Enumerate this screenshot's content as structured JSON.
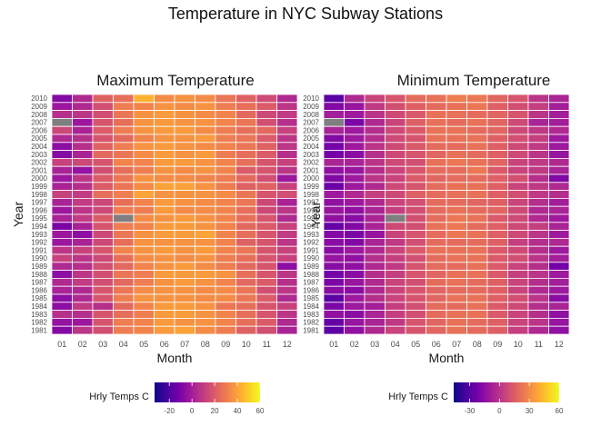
{
  "figure": {
    "title": "Temperature in NYC Subway Stations"
  },
  "chart_data": [
    {
      "type": "heatmap",
      "title": "Maximum Temperature",
      "xlabel": "Month",
      "ylabel": "Year",
      "x_categories": [
        "01",
        "02",
        "03",
        "04",
        "05",
        "06",
        "07",
        "08",
        "09",
        "10",
        "11",
        "12"
      ],
      "y_categories": [
        "2010",
        "2009",
        "2008",
        "2007",
        "2006",
        "2005",
        "2004",
        "2003",
        "2002",
        "2001",
        "2000",
        "1999",
        "1998",
        "1997",
        "1996",
        "1995",
        "1994",
        "1993",
        "1992",
        "1991",
        "1990",
        "1989",
        "1988",
        "1987",
        "1986",
        "1985",
        "1984",
        "1983",
        "1982",
        "1981"
      ],
      "values": [
        [
          -8,
          4,
          22,
          26,
          44,
          34,
          36,
          34,
          28,
          22,
          15,
          4
        ],
        [
          -2,
          4,
          16,
          30,
          32,
          36,
          34,
          36,
          30,
          26,
          20,
          8
        ],
        [
          6,
          8,
          16,
          28,
          36,
          38,
          36,
          34,
          32,
          24,
          14,
          10
        ],
        [
          null,
          -2,
          18,
          26,
          36,
          38,
          36,
          36,
          32,
          28,
          16,
          6
        ],
        [
          14,
          2,
          20,
          30,
          36,
          38,
          38,
          34,
          30,
          26,
          24,
          12
        ],
        [
          4,
          6,
          18,
          24,
          32,
          36,
          36,
          38,
          30,
          28,
          20,
          8
        ],
        [
          -6,
          6,
          22,
          30,
          36,
          38,
          36,
          34,
          32,
          28,
          22,
          8
        ],
        [
          -8,
          2,
          24,
          28,
          34,
          38,
          36,
          38,
          30,
          26,
          20,
          6
        ],
        [
          12,
          14,
          18,
          32,
          32,
          38,
          38,
          36,
          32,
          26,
          18,
          12
        ],
        [
          2,
          -4,
          16,
          26,
          30,
          36,
          34,
          36,
          32,
          20,
          18,
          8
        ],
        [
          -2,
          8,
          20,
          28,
          36,
          34,
          34,
          32,
          30,
          24,
          16,
          -2
        ],
        [
          2,
          6,
          20,
          28,
          34,
          40,
          40,
          36,
          30,
          22,
          22,
          12
        ],
        [
          12,
          10,
          26,
          30,
          40,
          36,
          36,
          36,
          34,
          28,
          18,
          16
        ],
        [
          2,
          10,
          14,
          26,
          32,
          38,
          36,
          34,
          32,
          28,
          14,
          2
        ],
        [
          -2,
          8,
          14,
          30,
          30,
          38,
          34,
          34,
          32,
          26,
          14,
          8
        ],
        [
          2,
          10,
          20,
          null,
          34,
          36,
          38,
          36,
          32,
          26,
          18,
          4
        ],
        [
          -10,
          2,
          18,
          30,
          32,
          38,
          38,
          36,
          32,
          24,
          20,
          12
        ],
        [
          -2,
          -6,
          14,
          28,
          36,
          38,
          38,
          40,
          32,
          26,
          18,
          10
        ],
        [
          -2,
          2,
          14,
          26,
          36,
          36,
          36,
          36,
          32,
          22,
          18,
          8
        ],
        [
          8,
          12,
          18,
          32,
          36,
          38,
          36,
          38,
          32,
          28,
          18,
          12
        ],
        [
          12,
          8,
          14,
          26,
          34,
          36,
          34,
          36,
          30,
          26,
          18,
          12
        ],
        [
          4,
          6,
          16,
          24,
          32,
          36,
          38,
          34,
          30,
          24,
          18,
          -6
        ],
        [
          -6,
          8,
          16,
          28,
          30,
          38,
          38,
          38,
          36,
          26,
          18,
          8
        ],
        [
          4,
          10,
          16,
          24,
          30,
          36,
          38,
          36,
          32,
          24,
          20,
          6
        ],
        [
          2,
          4,
          18,
          28,
          34,
          36,
          36,
          34,
          34,
          28,
          16,
          8
        ],
        [
          -6,
          4,
          18,
          30,
          36,
          36,
          36,
          34,
          34,
          28,
          20,
          4
        ],
        [
          -6,
          10,
          6,
          24,
          32,
          38,
          38,
          36,
          28,
          26,
          18,
          12
        ],
        [
          6,
          6,
          18,
          26,
          30,
          38,
          38,
          36,
          32,
          26,
          18,
          8
        ],
        [
          -4,
          -2,
          18,
          30,
          32,
          38,
          36,
          36,
          32,
          26,
          20,
          4
        ],
        [
          -8,
          8,
          16,
          30,
          32,
          38,
          40,
          34,
          30,
          22,
          16,
          2
        ]
      ],
      "legend_title": "Hrly Temps C",
      "color_range": [
        -33,
        60
      ],
      "color_ticks": [
        -20,
        0,
        20,
        40,
        60
      ],
      "missing_color": "#7f7f7f",
      "palette": [
        "#0d0887",
        "#46039f",
        "#7201a8",
        "#9c179e",
        "#bd3786",
        "#d8576b",
        "#ed7953",
        "#fb9f3a",
        "#fdca26",
        "#f0f921"
      ]
    },
    {
      "type": "heatmap",
      "title": "Minimum Temperature",
      "xlabel": "Month",
      "ylabel": "Year",
      "x_categories": [
        "01",
        "02",
        "03",
        "04",
        "05",
        "06",
        "07",
        "08",
        "09",
        "10",
        "11",
        "12"
      ],
      "y_categories": [
        "2010",
        "2009",
        "2008",
        "2007",
        "2006",
        "2005",
        "2004",
        "2003",
        "2002",
        "2001",
        "2000",
        "1999",
        "1998",
        "1997",
        "1996",
        "1995",
        "1994",
        "1993",
        "1992",
        "1991",
        "1990",
        "1989",
        "1988",
        "1987",
        "1986",
        "1985",
        "1984",
        "1983",
        "1982",
        "1981"
      ],
      "values": [
        [
          -28,
          -4,
          6,
          12,
          20,
          22,
          26,
          24,
          18,
          12,
          0,
          -6
        ],
        [
          -18,
          -12,
          2,
          10,
          16,
          20,
          22,
          24,
          16,
          10,
          4,
          -8
        ],
        [
          -8,
          -10,
          0,
          8,
          14,
          22,
          22,
          20,
          18,
          12,
          0,
          -8
        ],
        [
          null,
          -20,
          -4,
          6,
          16,
          22,
          20,
          22,
          18,
          8,
          -6,
          -8
        ],
        [
          -6,
          -10,
          -2,
          8,
          14,
          22,
          22,
          20,
          18,
          8,
          2,
          -4
        ],
        [
          -18,
          -10,
          -2,
          8,
          12,
          22,
          22,
          22,
          16,
          10,
          4,
          -10
        ],
        [
          -22,
          -10,
          0,
          8,
          14,
          20,
          20,
          22,
          16,
          8,
          2,
          -10
        ],
        [
          -22,
          -16,
          -2,
          8,
          12,
          18,
          22,
          20,
          16,
          8,
          0,
          -12
        ],
        [
          -6,
          -6,
          0,
          8,
          10,
          22,
          24,
          22,
          18,
          6,
          2,
          -4
        ],
        [
          -14,
          -12,
          -2,
          6,
          12,
          20,
          20,
          24,
          14,
          6,
          2,
          -6
        ],
        [
          -18,
          -10,
          0,
          6,
          14,
          18,
          20,
          20,
          16,
          10,
          -2,
          -18
        ],
        [
          -24,
          -10,
          -4,
          8,
          12,
          20,
          22,
          22,
          16,
          6,
          2,
          -4
        ],
        [
          -10,
          -4,
          4,
          8,
          16,
          20,
          22,
          22,
          16,
          10,
          2,
          -2
        ],
        [
          -14,
          -10,
          -4,
          6,
          10,
          20,
          20,
          18,
          16,
          6,
          -2,
          -8
        ],
        [
          -12,
          -14,
          -6,
          4,
          10,
          20,
          22,
          20,
          18,
          8,
          -4,
          -6
        ],
        [
          -14,
          -16,
          -6,
          null,
          10,
          20,
          24,
          22,
          14,
          8,
          -4,
          -10
        ],
        [
          -26,
          -18,
          -6,
          8,
          10,
          22,
          24,
          20,
          16,
          8,
          4,
          -6
        ],
        [
          -18,
          -20,
          -12,
          6,
          12,
          20,
          24,
          22,
          16,
          8,
          0,
          -10
        ],
        [
          -16,
          -18,
          -6,
          2,
          10,
          20,
          20,
          20,
          16,
          4,
          -2,
          -4
        ],
        [
          -16,
          -10,
          -4,
          6,
          14,
          22,
          22,
          22,
          14,
          8,
          -2,
          -10
        ],
        [
          -12,
          -14,
          -2,
          4,
          10,
          20,
          22,
          22,
          14,
          10,
          0,
          -8
        ],
        [
          -16,
          -14,
          -4,
          2,
          12,
          20,
          20,
          22,
          14,
          6,
          -2,
          -22
        ],
        [
          -22,
          -16,
          -2,
          4,
          12,
          18,
          22,
          22,
          14,
          4,
          0,
          -10
        ],
        [
          -20,
          -12,
          -4,
          6,
          10,
          20,
          22,
          20,
          16,
          6,
          -2,
          -8
        ],
        [
          -16,
          -16,
          -4,
          6,
          12,
          18,
          20,
          20,
          16,
          6,
          -4,
          -10
        ],
        [
          -28,
          -10,
          -2,
          6,
          12,
          18,
          22,
          22,
          16,
          10,
          0,
          -16
        ],
        [
          -20,
          -10,
          -8,
          4,
          10,
          20,
          20,
          22,
          14,
          8,
          -2,
          -6
        ],
        [
          -14,
          -16,
          -6,
          4,
          10,
          20,
          22,
          22,
          14,
          6,
          -2,
          -14
        ],
        [
          -26,
          -12,
          -6,
          2,
          12,
          18,
          22,
          20,
          16,
          6,
          0,
          -12
        ],
        [
          -28,
          -14,
          -4,
          6,
          12,
          18,
          22,
          20,
          16,
          4,
          -4,
          -14
        ]
      ],
      "legend_title": "Hrly Temps C",
      "color_range": [
        -46,
        60
      ],
      "color_ticks": [
        -30,
        0,
        30,
        60
      ],
      "missing_color": "#7f7f7f",
      "palette": [
        "#0d0887",
        "#46039f",
        "#7201a8",
        "#9c179e",
        "#bd3786",
        "#d8576b",
        "#ed7953",
        "#fb9f3a",
        "#fdca26",
        "#f0f921"
      ]
    }
  ]
}
